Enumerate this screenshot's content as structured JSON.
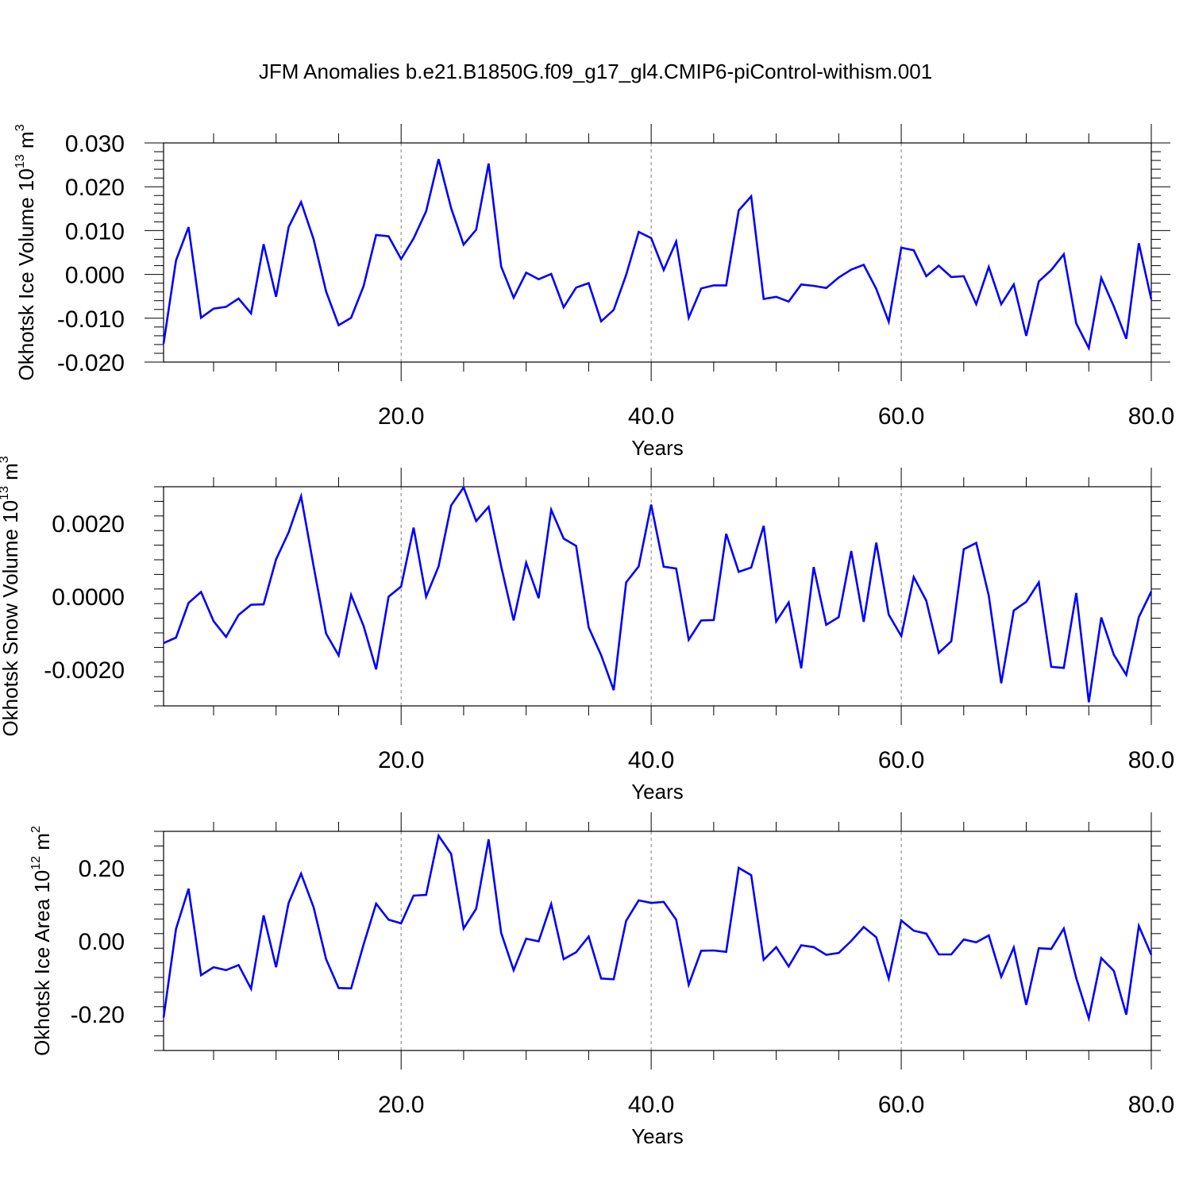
{
  "figure": {
    "title": "JFM Anomalies b.e21.B1850G.f09_g17_gl4.CMIP6-piControl-withism.001"
  },
  "colors": {
    "series": "#0000ff",
    "axis": "#000000",
    "grid": "#7f7f7f"
  },
  "chart_data": [
    {
      "type": "line",
      "ylabel": "Okhotsk Ice Volume 10^13 m^3",
      "ylabel_parts": [
        "Okhotsk Ice Volume 10",
        "13",
        " m",
        "3"
      ],
      "xlabel": "Years",
      "xlim": [
        1,
        80
      ],
      "ylim": [
        -0.02,
        0.03
      ],
      "xticks": [
        "20.0",
        "40.0",
        "60.0",
        "80.0"
      ],
      "yticks": [
        "-0.020",
        "-0.010",
        "0.000",
        "0.010",
        "0.020",
        "0.030"
      ],
      "ytick_values": [
        -0.02,
        -0.01,
        0.0,
        0.01,
        0.02,
        0.03
      ],
      "grid_x": [
        20,
        40,
        60
      ],
      "x_start": 1,
      "values": [
        -0.0158,
        0.0032,
        0.0108,
        -0.0099,
        -0.0078,
        -0.0074,
        -0.0055,
        -0.0089,
        0.0069,
        -0.0051,
        0.0108,
        0.0165,
        0.008,
        -0.0039,
        -0.0116,
        -0.0099,
        -0.0027,
        0.009,
        0.0087,
        0.0035,
        0.0082,
        0.0144,
        0.0263,
        0.0151,
        0.0068,
        0.0102,
        0.0253,
        0.0018,
        -0.0053,
        0.0004,
        -0.0011,
        0.0001,
        -0.0075,
        -0.003,
        -0.002,
        -0.0107,
        -0.0081,
        -0.0001,
        0.0097,
        0.0083,
        0.001,
        0.0075,
        -0.0099,
        -0.0032,
        -0.0025,
        -0.0025,
        0.0146,
        0.0178,
        -0.0056,
        -0.0051,
        -0.0062,
        -0.0023,
        -0.0026,
        -0.0031,
        -0.0007,
        0.0011,
        0.0022,
        -0.0033,
        -0.0108,
        0.0061,
        0.0055,
        -0.0004,
        0.002,
        -0.0006,
        -0.0004,
        -0.0068,
        0.0017,
        -0.0068,
        -0.0023,
        -0.014,
        -0.0016,
        0.001,
        0.0046,
        -0.0112,
        -0.0168,
        -0.0008,
        -0.0073,
        -0.0147,
        0.0071,
        -0.0057
      ]
    },
    {
      "type": "line",
      "ylabel": "Okhotsk Snow Volume 10^13 m^3",
      "ylabel_parts": [
        "Okhotsk Snow Volume 10",
        "13",
        " m",
        "3"
      ],
      "xlabel": "Years",
      "xlim": [
        1,
        80
      ],
      "ylim": [
        -0.003,
        0.003
      ],
      "xticks": [
        "20.0",
        "40.0",
        "60.0",
        "80.0"
      ],
      "yticks": [
        "-0.0020",
        "0.0000",
        "0.0020"
      ],
      "ytick_values": [
        -0.002,
        0.0,
        0.002
      ],
      "grid_x": [
        20,
        40,
        60
      ],
      "x_start": 1,
      "values": [
        -0.00128,
        -0.00113,
        -0.00018,
        0.00012,
        -0.00068,
        -0.00111,
        -0.00051,
        -0.00023,
        -0.00022,
        0.00101,
        0.00175,
        0.00274,
        0.00082,
        -0.00102,
        -0.00162,
        4e-05,
        -0.00081,
        -0.002,
        -1e-05,
        0.00027,
        0.00188,
        -1e-05,
        0.00082,
        0.00249,
        0.00298,
        0.00206,
        0.00245,
        0.00082,
        -0.00066,
        0.00092,
        -5e-05,
        0.00237,
        0.00158,
        0.00138,
        -0.00085,
        -0.00161,
        -0.00257,
        0.00038,
        0.00082,
        0.00251,
        0.00081,
        0.00076,
        -0.00119,
        -0.00066,
        -0.00065,
        0.00171,
        0.00067,
        0.00079,
        0.00193,
        -0.00069,
        -0.00017,
        -0.00197,
        0.0008,
        -0.00078,
        -0.00057,
        0.00124,
        -0.0007,
        0.00147,
        -0.0005,
        -0.00109,
        0.00053,
        -0.00012,
        -0.00155,
        -0.00123,
        0.00129,
        0.00146,
        2e-05,
        -0.00238,
        -0.00039,
        -0.00015,
        0.00038,
        -0.00193,
        -0.00196,
        9e-05,
        -0.0029,
        -0.00058,
        -0.0016,
        -0.00215,
        -0.00057,
        0.00013
      ]
    },
    {
      "type": "line",
      "ylabel": "Okhotsk Ice Area 10^12 m^2",
      "ylabel_parts": [
        "Okhotsk Ice Area 10",
        "12",
        " m",
        "2"
      ],
      "xlabel": "Years",
      "xlim": [
        1,
        80
      ],
      "ylim": [
        -0.3,
        0.3
      ],
      "xticks": [
        "20.0",
        "40.0",
        "60.0",
        "80.0"
      ],
      "yticks": [
        "-0.20",
        "0.00",
        "0.20"
      ],
      "ytick_values": [
        -0.2,
        0.0,
        0.2
      ],
      "grid_x": [
        20,
        40,
        60
      ],
      "x_start": 1,
      "values": [
        -0.21,
        0.033,
        0.143,
        -0.094,
        -0.072,
        -0.08,
        -0.066,
        -0.131,
        0.07,
        -0.072,
        0.104,
        0.184,
        0.092,
        -0.05,
        -0.129,
        -0.13,
        -0.01,
        0.102,
        0.058,
        0.048,
        0.124,
        0.126,
        0.288,
        0.238,
        0.034,
        0.088,
        0.278,
        0.022,
        -0.08,
        0.006,
        -0.001,
        0.101,
        -0.05,
        -0.031,
        0.012,
        -0.103,
        -0.105,
        0.055,
        0.111,
        0.104,
        0.107,
        0.058,
        -0.12,
        -0.027,
        -0.026,
        -0.03,
        0.2,
        0.18,
        -0.052,
        -0.017,
        -0.07,
        -0.012,
        -0.017,
        -0.038,
        -0.033,
        0.0,
        0.038,
        0.01,
        -0.103,
        0.056,
        0.028,
        0.02,
        -0.037,
        -0.037,
        0.004,
        -0.004,
        0.015,
        -0.098,
        -0.018,
        -0.175,
        -0.02,
        -0.022,
        0.034,
        -0.102,
        -0.212,
        -0.047,
        -0.082,
        -0.202,
        0.041,
        -0.038
      ]
    }
  ]
}
